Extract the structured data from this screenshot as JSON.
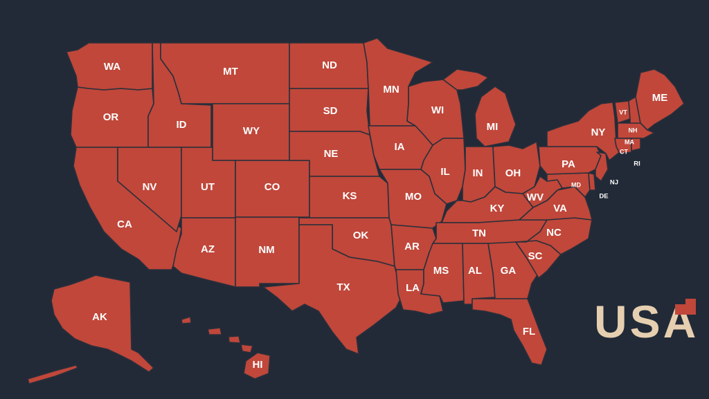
{
  "map": {
    "title": "USA",
    "colors": {
      "background": "#222a37",
      "state_fill": "#c0473a",
      "state_border": "#2a2f3b",
      "label": "#ffffff",
      "title": "#e6cfb0"
    },
    "states": {
      "WA": "WA",
      "OR": "OR",
      "CA": "CA",
      "ID": "ID",
      "NV": "NV",
      "MT": "MT",
      "WY": "WY",
      "UT": "UT",
      "AZ": "AZ",
      "CO": "CO",
      "NM": "NM",
      "ND": "ND",
      "SD": "SD",
      "NE": "NE",
      "KS": "KS",
      "OK": "OK",
      "TX": "TX",
      "MN": "MN",
      "IA": "IA",
      "MO": "MO",
      "AR": "AR",
      "LA": "LA",
      "WI": "WI",
      "IL": "IL",
      "MI": "MI",
      "IN": "IN",
      "OH": "OH",
      "KY": "KY",
      "TN": "TN",
      "MS": "MS",
      "AL": "AL",
      "GA": "GA",
      "FL": "FL",
      "SC": "SC",
      "NC": "NC",
      "VA": "VA",
      "WV": "WV",
      "PA": "PA",
      "NY": "NY",
      "VT": "VT",
      "NH": "NH",
      "ME": "ME",
      "MA": "MA",
      "CT": "CT",
      "RI": "RI",
      "NJ": "NJ",
      "DE": "DE",
      "MD": "MD",
      "AK": "AK",
      "HI": "HI"
    }
  }
}
